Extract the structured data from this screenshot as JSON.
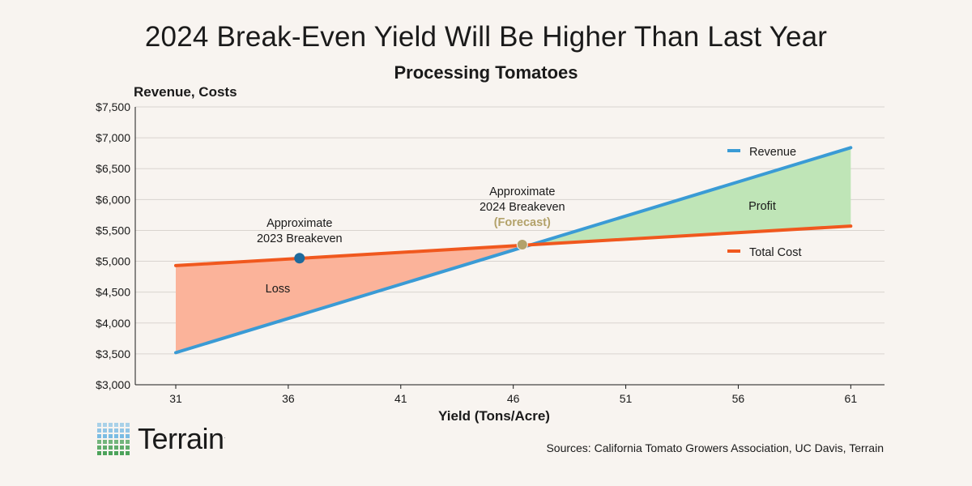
{
  "title": "2024 Break-Even Yield Will Be Higher Than Last Year",
  "subtitle": "Processing Tomatoes",
  "source": "Sources: California Tomato Growers Association, UC Davis, Terrain",
  "logo": {
    "text": "Terrain",
    "trademark": "."
  },
  "colors": {
    "revenue": "#3a9bd5",
    "total_cost": "#f0581e",
    "profit_fill": "#bfe5b7",
    "loss_fill": "#fbb39a",
    "breakeven_2023": "#1e6a9c",
    "breakeven_2024": "#b3a26a",
    "grid": "#d9d4cf",
    "logo_blue": "#5aaee0",
    "logo_green": "#3a9a4a"
  },
  "chart_data": {
    "type": "line",
    "title": "2024 Break-Even Yield Will Be Higher Than Last Year",
    "subtitle": "Processing Tomatoes",
    "xlabel": "Yield (Tons/Acre)",
    "ylabel": "Revenue, Costs",
    "xlim": [
      29.2,
      62.5
    ],
    "ylim": [
      3000,
      7500
    ],
    "x_ticks": [
      31,
      36,
      41,
      46,
      51,
      56,
      61
    ],
    "y_ticks": [
      3000,
      3500,
      4000,
      4500,
      5000,
      5500,
      6000,
      6500,
      7000,
      7500
    ],
    "y_tick_labels": [
      "$3,000",
      "$3,500",
      "$4,000",
      "$4,500",
      "$5,000",
      "$5,500",
      "$6,000",
      "$6,500",
      "$7,000",
      "$7,500"
    ],
    "grid": "horizontal",
    "legend_placement": "right",
    "series": [
      {
        "name": "Revenue",
        "x": [
          31,
          61
        ],
        "y": [
          3520,
          6840
        ]
      },
      {
        "name": "Total Cost",
        "x": [
          31,
          61
        ],
        "y": [
          4930,
          5570
        ]
      }
    ],
    "areas": [
      {
        "label": "Loss",
        "between": [
          "Total Cost",
          "Revenue"
        ],
        "x_range": [
          31,
          46.3
        ]
      },
      {
        "label": "Profit",
        "between": [
          "Revenue",
          "Total Cost"
        ],
        "x_range": [
          46.3,
          61
        ]
      }
    ],
    "points": [
      {
        "label": "Approximate\n2023 Breakeven",
        "lines": [
          "Approximate",
          "2023 Breakeven"
        ],
        "x": 36.5,
        "y": 5050
      },
      {
        "label": "Approximate\n2024 Breakeven\n(Forecast)",
        "lines": [
          "Approximate",
          "2024 Breakeven"
        ],
        "highlight": "(Forecast)",
        "x": 46.4,
        "y": 5270
      }
    ],
    "annotations": {
      "loss": "Loss",
      "profit": "Profit"
    }
  }
}
